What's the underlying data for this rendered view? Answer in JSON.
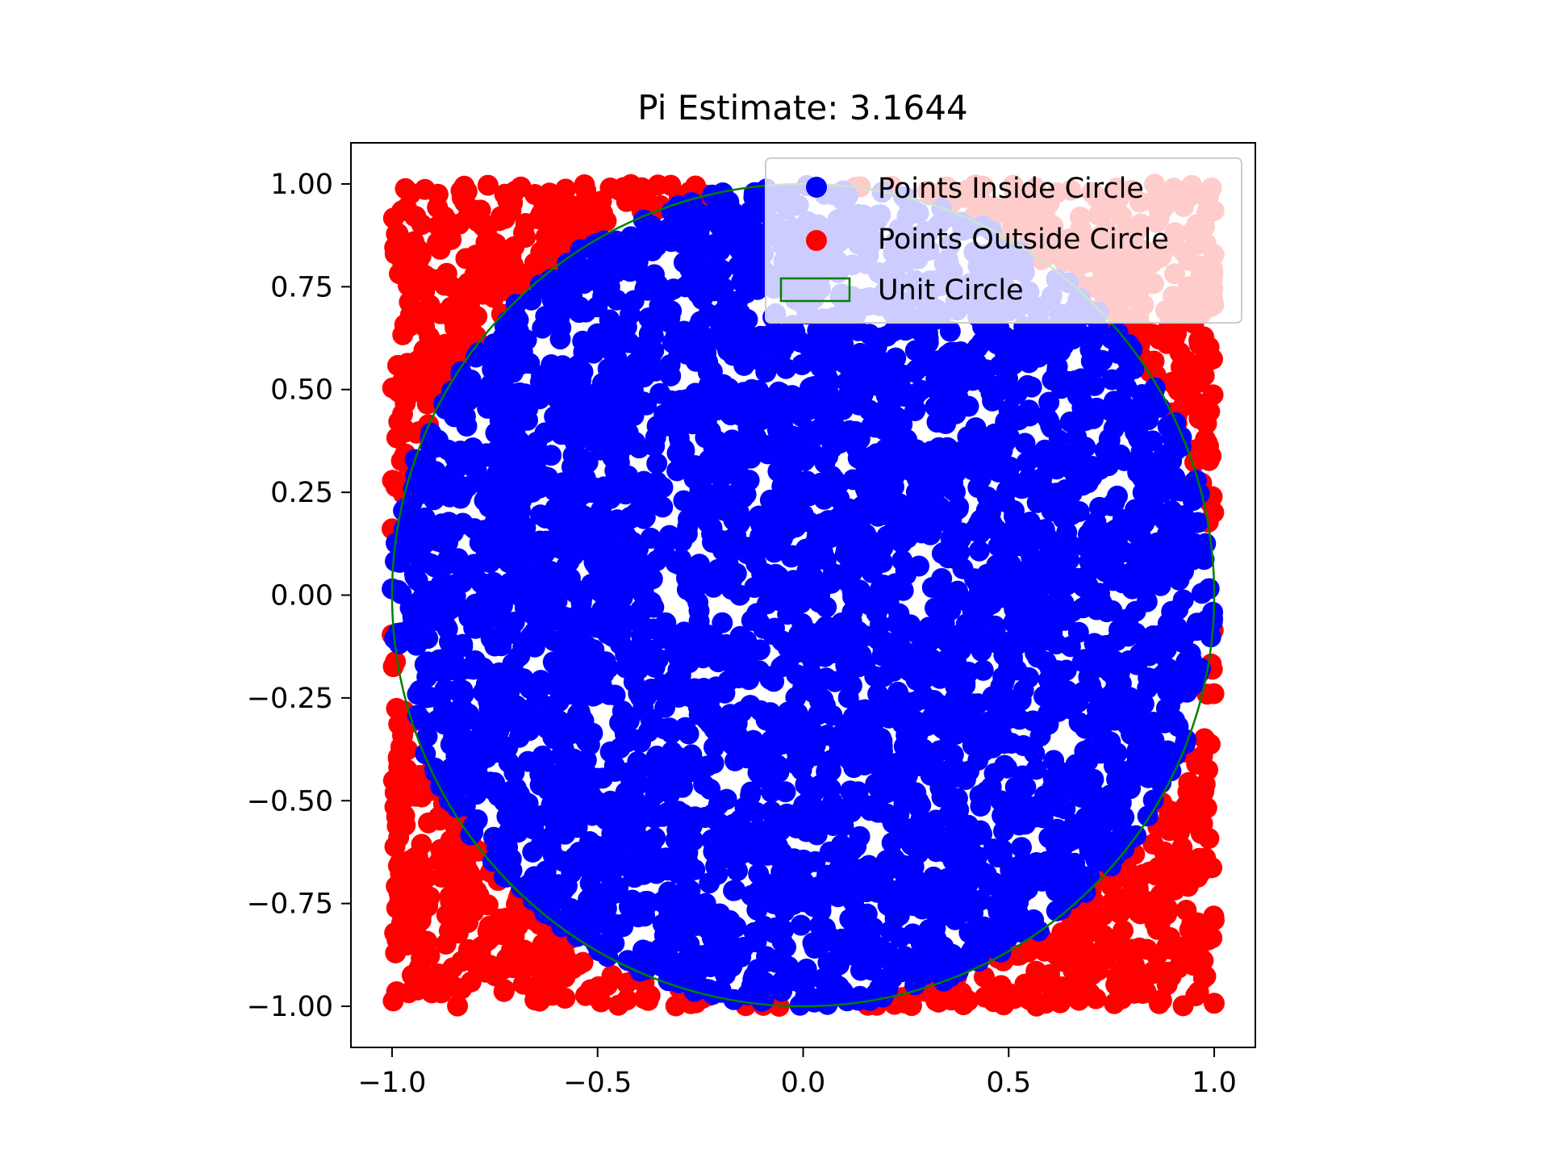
{
  "chart_data": {
    "type": "scatter",
    "title": "Pi Estimate: 3.1644",
    "xlabel": "",
    "ylabel": "",
    "xlim": [
      -1.1,
      1.1
    ],
    "ylim": [
      -1.1,
      1.1
    ],
    "x_ticks": [
      -1.0,
      -0.5,
      0.0,
      0.5,
      1.0
    ],
    "x_tick_labels": [
      "−1.0",
      "−0.5",
      "0.0",
      "0.5",
      "1.0"
    ],
    "y_ticks": [
      1.0,
      0.75,
      0.5,
      0.25,
      0.0,
      -0.25,
      -0.5,
      -0.75,
      -1.0
    ],
    "y_tick_labels": [
      "1.00",
      "0.75",
      "0.50",
      "0.25",
      "0.00",
      "−0.25",
      "−0.50",
      "−0.75",
      "−1.00"
    ],
    "grid": false,
    "legend_position": "top-right",
    "aspect": "equal",
    "series": [
      {
        "name": "Points Inside Circle",
        "color": "#0000ff",
        "marker": "circle",
        "region": "x^2 + y^2 <= 1",
        "x_range": [
          -1.0,
          1.0
        ],
        "y_range": [
          -1.0,
          1.0
        ]
      },
      {
        "name": "Points Outside Circle",
        "color": "#ff0000",
        "marker": "circle",
        "region": "x^2 + y^2 > 1",
        "x_range": [
          -1.0,
          1.0
        ],
        "y_range": [
          -1.0,
          1.0
        ]
      }
    ],
    "shapes": [
      {
        "name": "Unit Circle",
        "type": "circle",
        "center": [
          0,
          0
        ],
        "radius": 1,
        "edge_color": "#008000",
        "fill": "none"
      }
    ]
  }
}
